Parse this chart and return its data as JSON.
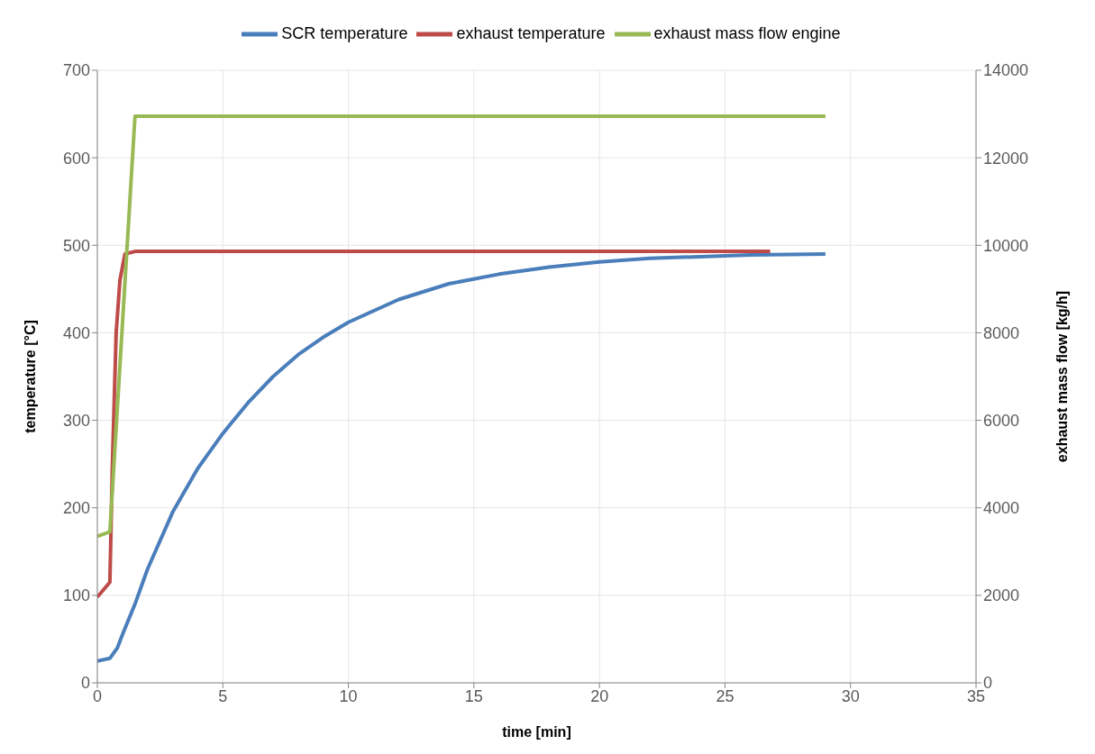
{
  "chart_data": {
    "type": "line",
    "xlabel": "time [min]",
    "ylabel": "temperature [°C]",
    "y2label": "exhaust mass flow [kg/h]",
    "xlim": [
      0,
      35
    ],
    "xticks": [
      0,
      5,
      10,
      15,
      20,
      25,
      30,
      35
    ],
    "ylim": [
      0,
      700
    ],
    "yticks": [
      0,
      100,
      200,
      300,
      400,
      500,
      600,
      700
    ],
    "y2lim": [
      0,
      14000
    ],
    "y2ticks": [
      0,
      2000,
      4000,
      6000,
      8000,
      10000,
      12000,
      14000
    ],
    "grid": true,
    "legend": "top",
    "marker": "none",
    "line_style": "solid",
    "series": [
      {
        "name": "SCR temperature",
        "color": "#4a7ebb",
        "x": [
          0,
          0.5,
          0.8,
          1,
          1.5,
          2,
          3,
          4,
          5,
          6,
          7,
          8,
          9,
          10,
          12,
          14,
          16,
          18,
          20,
          22,
          24,
          26,
          29
        ],
        "values": [
          25,
          28,
          40,
          55,
          90,
          130,
          195,
          245,
          285,
          320,
          350,
          375,
          395,
          412,
          438,
          456,
          467,
          475,
          481,
          485,
          487,
          489,
          490
        ]
      },
      {
        "name": "exhaust temperature",
        "color": "#be4b48",
        "x": [
          0,
          0.5,
          0.6,
          0.75,
          0.9,
          1.1,
          1.5,
          26.8
        ],
        "values": [
          98,
          115,
          250,
          400,
          460,
          490,
          493,
          493
        ]
      },
      {
        "name": "exhaust mass flow engine",
        "color": "#98b954",
        "axis": "y2",
        "x": [
          0,
          0.5,
          1.5,
          29
        ],
        "values": [
          3350,
          3450,
          12950,
          12950
        ]
      }
    ]
  }
}
